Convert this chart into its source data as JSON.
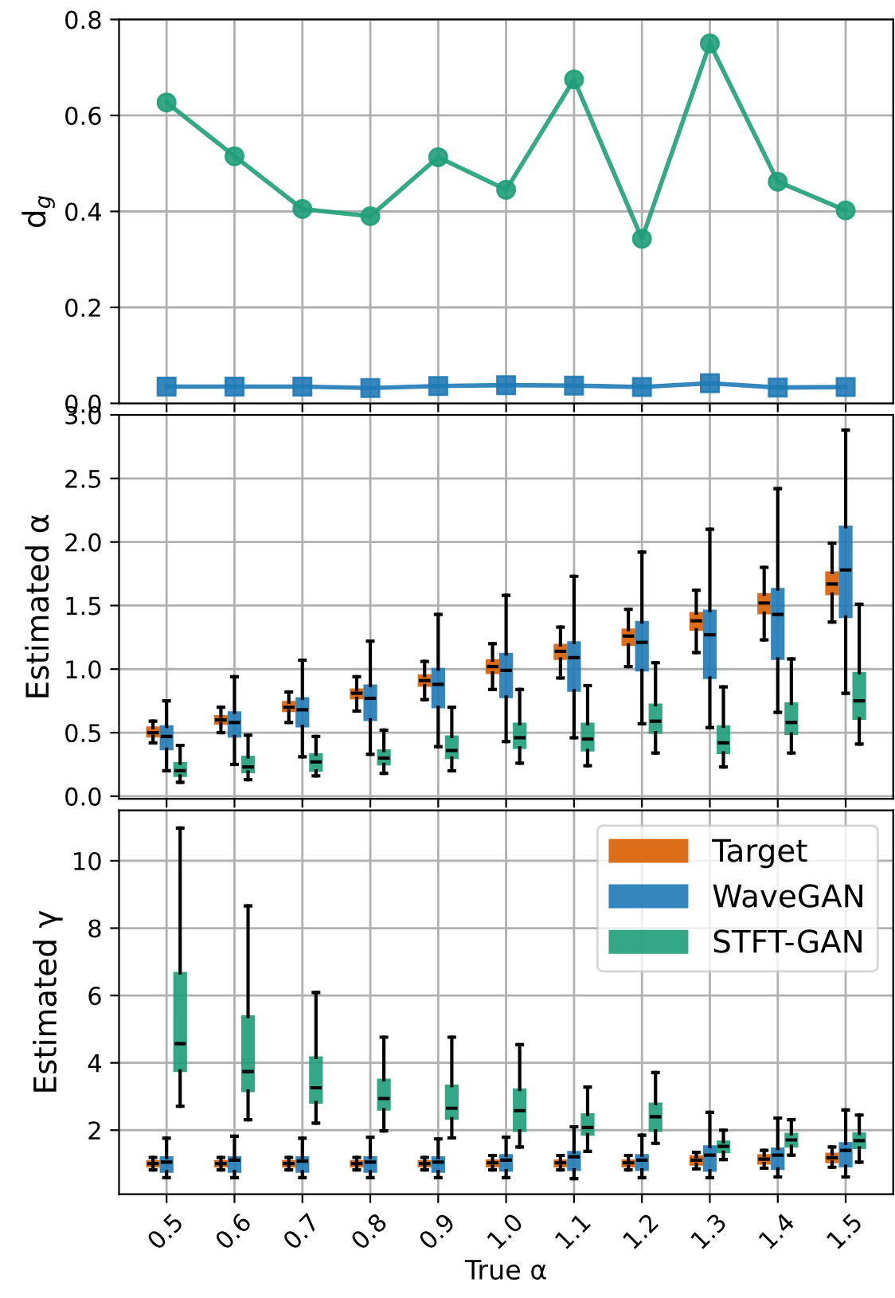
{
  "chart_data": [
    {
      "type": "line",
      "ylabel": "d$_{g}$",
      "categories": [
        "0.5",
        "0.6",
        "0.7",
        "0.8",
        "0.9",
        "1.0",
        "1.1",
        "1.2",
        "1.3",
        "1.4",
        "1.5"
      ],
      "ylim": [
        0.0,
        0.8
      ],
      "yticks": [
        {
          "value": 0,
          "label": "0.0"
        },
        0.2,
        0.4,
        0.6,
        0.8
      ],
      "grid": true,
      "tick_labels": "y",
      "line_style": "solid",
      "series": [
        {
          "color": "#1f7ab6",
          "marker": "square",
          "values": [
            0.035,
            0.035,
            0.035,
            0.032,
            0.036,
            0.038,
            0.037,
            0.034,
            0.042,
            0.033,
            0.034
          ]
        },
        {
          "color": "#1f9e79",
          "marker": "circle",
          "values": [
            0.627,
            0.515,
            0.405,
            0.39,
            0.513,
            0.445,
            0.675,
            0.343,
            0.75,
            0.462,
            0.402
          ]
        }
      ]
    },
    {
      "type": "box",
      "ylabel": "Estimated α",
      "categories": [
        "0.5",
        "0.6",
        "0.7",
        "0.8",
        "0.9",
        "1.0",
        "1.1",
        "1.2",
        "1.3",
        "1.4",
        "1.5"
      ],
      "ylim": [
        -0.02,
        3.0
      ],
      "yticks": [
        {
          "value": 0,
          "label": "0.0"
        },
        0.5,
        {
          "value": 1,
          "label": "1.0"
        },
        1.5,
        {
          "value": 2,
          "label": "2.0"
        },
        2.5,
        {
          "value": 3,
          "label": "3.0"
        }
      ],
      "grid": true,
      "tick_labels": "y",
      "series": [
        {
          "color": "#d95f02",
          "boxes": [
            {
              "low": 0.42,
              "q1": 0.47,
              "median": 0.5,
              "q3": 0.54,
              "high": 0.59
            },
            {
              "low": 0.5,
              "q1": 0.57,
              "median": 0.6,
              "q3": 0.63,
              "high": 0.7
            },
            {
              "low": 0.58,
              "q1": 0.67,
              "median": 0.7,
              "q3": 0.74,
              "high": 0.82
            },
            {
              "low": 0.67,
              "q1": 0.77,
              "median": 0.81,
              "q3": 0.84,
              "high": 0.94
            },
            {
              "low": 0.76,
              "q1": 0.87,
              "median": 0.91,
              "q3": 0.95,
              "high": 1.06
            },
            {
              "low": 0.84,
              "q1": 0.97,
              "median": 1.02,
              "q3": 1.07,
              "high": 1.2
            },
            {
              "low": 0.93,
              "q1": 1.08,
              "median": 1.14,
              "q3": 1.19,
              "high": 1.33
            },
            {
              "low": 1.02,
              "q1": 1.19,
              "median": 1.26,
              "q3": 1.31,
              "high": 1.47
            },
            {
              "low": 1.13,
              "q1": 1.31,
              "median": 1.38,
              "q3": 1.44,
              "high": 1.62
            },
            {
              "low": 1.23,
              "q1": 1.44,
              "median": 1.52,
              "q3": 1.59,
              "high": 1.8
            },
            {
              "low": 1.37,
              "q1": 1.59,
              "median": 1.67,
              "q3": 1.76,
              "high": 1.99
            }
          ]
        },
        {
          "color": "#1f7ab6",
          "boxes": [
            {
              "low": 0.2,
              "q1": 0.37,
              "median": 0.47,
              "q3": 0.55,
              "high": 0.75
            },
            {
              "low": 0.25,
              "q1": 0.47,
              "median": 0.58,
              "q3": 0.66,
              "high": 0.94
            },
            {
              "low": 0.31,
              "q1": 0.55,
              "median": 0.68,
              "q3": 0.77,
              "high": 1.07
            },
            {
              "low": 0.33,
              "q1": 0.6,
              "median": 0.77,
              "q3": 0.87,
              "high": 1.22
            },
            {
              "low": 0.39,
              "q1": 0.7,
              "median": 0.88,
              "q3": 1.0,
              "high": 1.43
            },
            {
              "low": 0.43,
              "q1": 0.78,
              "median": 0.99,
              "q3": 1.12,
              "high": 1.58
            },
            {
              "low": 0.46,
              "q1": 0.83,
              "median": 1.09,
              "q3": 1.21,
              "high": 1.73
            },
            {
              "low": 0.57,
              "q1": 0.99,
              "median": 1.21,
              "q3": 1.37,
              "high": 1.92
            },
            {
              "low": 0.54,
              "q1": 0.93,
              "median": 1.27,
              "q3": 1.46,
              "high": 2.1
            },
            {
              "low": 0.66,
              "q1": 1.08,
              "median": 1.43,
              "q3": 1.63,
              "high": 2.42
            },
            {
              "low": 0.81,
              "q1": 1.41,
              "median": 1.78,
              "q3": 2.12,
              "high": 2.88
            }
          ]
        },
        {
          "color": "#1f9e79",
          "boxes": [
            {
              "low": 0.11,
              "q1": 0.16,
              "median": 0.2,
              "q3": 0.26,
              "high": 0.4
            },
            {
              "low": 0.13,
              "q1": 0.19,
              "median": 0.23,
              "q3": 0.31,
              "high": 0.48
            },
            {
              "low": 0.16,
              "q1": 0.2,
              "median": 0.27,
              "q3": 0.33,
              "high": 0.47
            },
            {
              "low": 0.18,
              "q1": 0.25,
              "median": 0.3,
              "q3": 0.36,
              "high": 0.52
            },
            {
              "low": 0.2,
              "q1": 0.3,
              "median": 0.36,
              "q3": 0.47,
              "high": 0.7
            },
            {
              "low": 0.26,
              "q1": 0.38,
              "median": 0.46,
              "q3": 0.57,
              "high": 0.84
            },
            {
              "low": 0.24,
              "q1": 0.36,
              "median": 0.45,
              "q3": 0.57,
              "high": 0.87
            },
            {
              "low": 0.34,
              "q1": 0.5,
              "median": 0.59,
              "q3": 0.72,
              "high": 1.05
            },
            {
              "low": 0.23,
              "q1": 0.34,
              "median": 0.42,
              "q3": 0.55,
              "high": 0.86
            },
            {
              "low": 0.34,
              "q1": 0.49,
              "median": 0.58,
              "q3": 0.73,
              "high": 1.08
            },
            {
              "low": 0.41,
              "q1": 0.61,
              "median": 0.75,
              "q3": 0.97,
              "high": 1.51
            }
          ]
        }
      ]
    },
    {
      "type": "box",
      "ylabel": "Estimated γ",
      "xlabel": "True α",
      "categories": [
        "0.5",
        "0.6",
        "0.7",
        "0.8",
        "0.9",
        "1.0",
        "1.1",
        "1.2",
        "1.3",
        "1.4",
        "1.5"
      ],
      "ylim": [
        0.1,
        11.5
      ],
      "yticks": [
        2,
        4,
        6,
        8,
        10
      ],
      "grid": true,
      "legend": "top right",
      "series": [
        {
          "name": "Target",
          "color": "#d95f02",
          "boxes": [
            {
              "low": 0.82,
              "q1": 0.93,
              "median": 1.01,
              "q3": 1.08,
              "high": 1.19
            },
            {
              "low": 0.82,
              "q1": 0.93,
              "median": 1.01,
              "q3": 1.08,
              "high": 1.19
            },
            {
              "low": 0.82,
              "q1": 0.93,
              "median": 1.01,
              "q3": 1.08,
              "high": 1.19
            },
            {
              "low": 0.82,
              "q1": 0.93,
              "median": 1.01,
              "q3": 1.08,
              "high": 1.19
            },
            {
              "low": 0.82,
              "q1": 0.93,
              "median": 1.01,
              "q3": 1.08,
              "high": 1.19
            },
            {
              "low": 0.82,
              "q1": 0.93,
              "median": 1.03,
              "q3": 1.1,
              "high": 1.25
            },
            {
              "low": 0.82,
              "q1": 0.93,
              "median": 1.03,
              "q3": 1.1,
              "high": 1.25
            },
            {
              "low": 0.82,
              "q1": 0.93,
              "median": 1.03,
              "q3": 1.1,
              "high": 1.25
            },
            {
              "low": 0.85,
              "q1": 0.98,
              "median": 1.11,
              "q3": 1.22,
              "high": 1.34
            },
            {
              "low": 0.87,
              "q1": 1.01,
              "median": 1.14,
              "q3": 1.26,
              "high": 1.4
            },
            {
              "low": 0.9,
              "q1": 1.05,
              "median": 1.18,
              "q3": 1.3,
              "high": 1.5
            }
          ]
        },
        {
          "name": "WaveGAN",
          "color": "#1f7ab6",
          "boxes": [
            {
              "low": 0.59,
              "q1": 0.77,
              "median": 1.05,
              "q3": 1.19,
              "high": 1.76
            },
            {
              "low": 0.59,
              "q1": 0.77,
              "median": 1.11,
              "q3": 1.19,
              "high": 1.82
            },
            {
              "low": 0.59,
              "q1": 0.77,
              "median": 1.08,
              "q3": 1.19,
              "high": 1.76
            },
            {
              "low": 0.59,
              "q1": 0.77,
              "median": 1.05,
              "q3": 1.19,
              "high": 1.79
            },
            {
              "low": 0.59,
              "q1": 0.77,
              "median": 1.05,
              "q3": 1.19,
              "high": 1.74
            },
            {
              "low": 0.59,
              "q1": 0.8,
              "median": 1.11,
              "q3": 1.26,
              "high": 1.79
            },
            {
              "low": 0.56,
              "q1": 0.82,
              "median": 1.21,
              "q3": 1.35,
              "high": 2.1
            },
            {
              "low": 0.59,
              "q1": 0.82,
              "median": 1.11,
              "q3": 1.26,
              "high": 1.85
            },
            {
              "low": 0.59,
              "q1": 0.8,
              "median": 1.26,
              "q3": 1.52,
              "high": 2.53
            },
            {
              "low": 0.61,
              "q1": 0.85,
              "median": 1.26,
              "q3": 1.45,
              "high": 2.36
            },
            {
              "low": 0.61,
              "q1": 0.93,
              "median": 1.4,
              "q3": 1.61,
              "high": 2.6
            }
          ]
        },
        {
          "name": "STFT-GAN",
          "color": "#1f9e79",
          "boxes": [
            {
              "low": 2.71,
              "q1": 3.76,
              "median": 4.57,
              "q3": 6.67,
              "high": 10.97
            },
            {
              "low": 2.31,
              "q1": 3.16,
              "median": 3.74,
              "q3": 5.38,
              "high": 8.66
            },
            {
              "low": 2.21,
              "q1": 2.82,
              "median": 3.26,
              "q3": 4.16,
              "high": 6.09
            },
            {
              "low": 1.98,
              "q1": 2.61,
              "median": 2.94,
              "q3": 3.5,
              "high": 4.76
            },
            {
              "low": 1.77,
              "q1": 2.34,
              "median": 2.65,
              "q3": 3.32,
              "high": 4.76
            },
            {
              "low": 1.5,
              "q1": 1.98,
              "median": 2.58,
              "q3": 3.21,
              "high": 4.54
            },
            {
              "low": 1.37,
              "q1": 1.87,
              "median": 2.08,
              "q3": 2.47,
              "high": 3.28
            },
            {
              "low": 1.61,
              "q1": 1.98,
              "median": 2.4,
              "q3": 2.79,
              "high": 3.71
            },
            {
              "low": 1.13,
              "q1": 1.35,
              "median": 1.52,
              "q3": 1.66,
              "high": 2.0
            },
            {
              "low": 1.26,
              "q1": 1.52,
              "median": 1.71,
              "q3": 1.89,
              "high": 2.31
            },
            {
              "low": 1.05,
              "q1": 1.47,
              "median": 1.69,
              "q3": 1.9,
              "high": 2.45
            }
          ]
        }
      ]
    }
  ]
}
